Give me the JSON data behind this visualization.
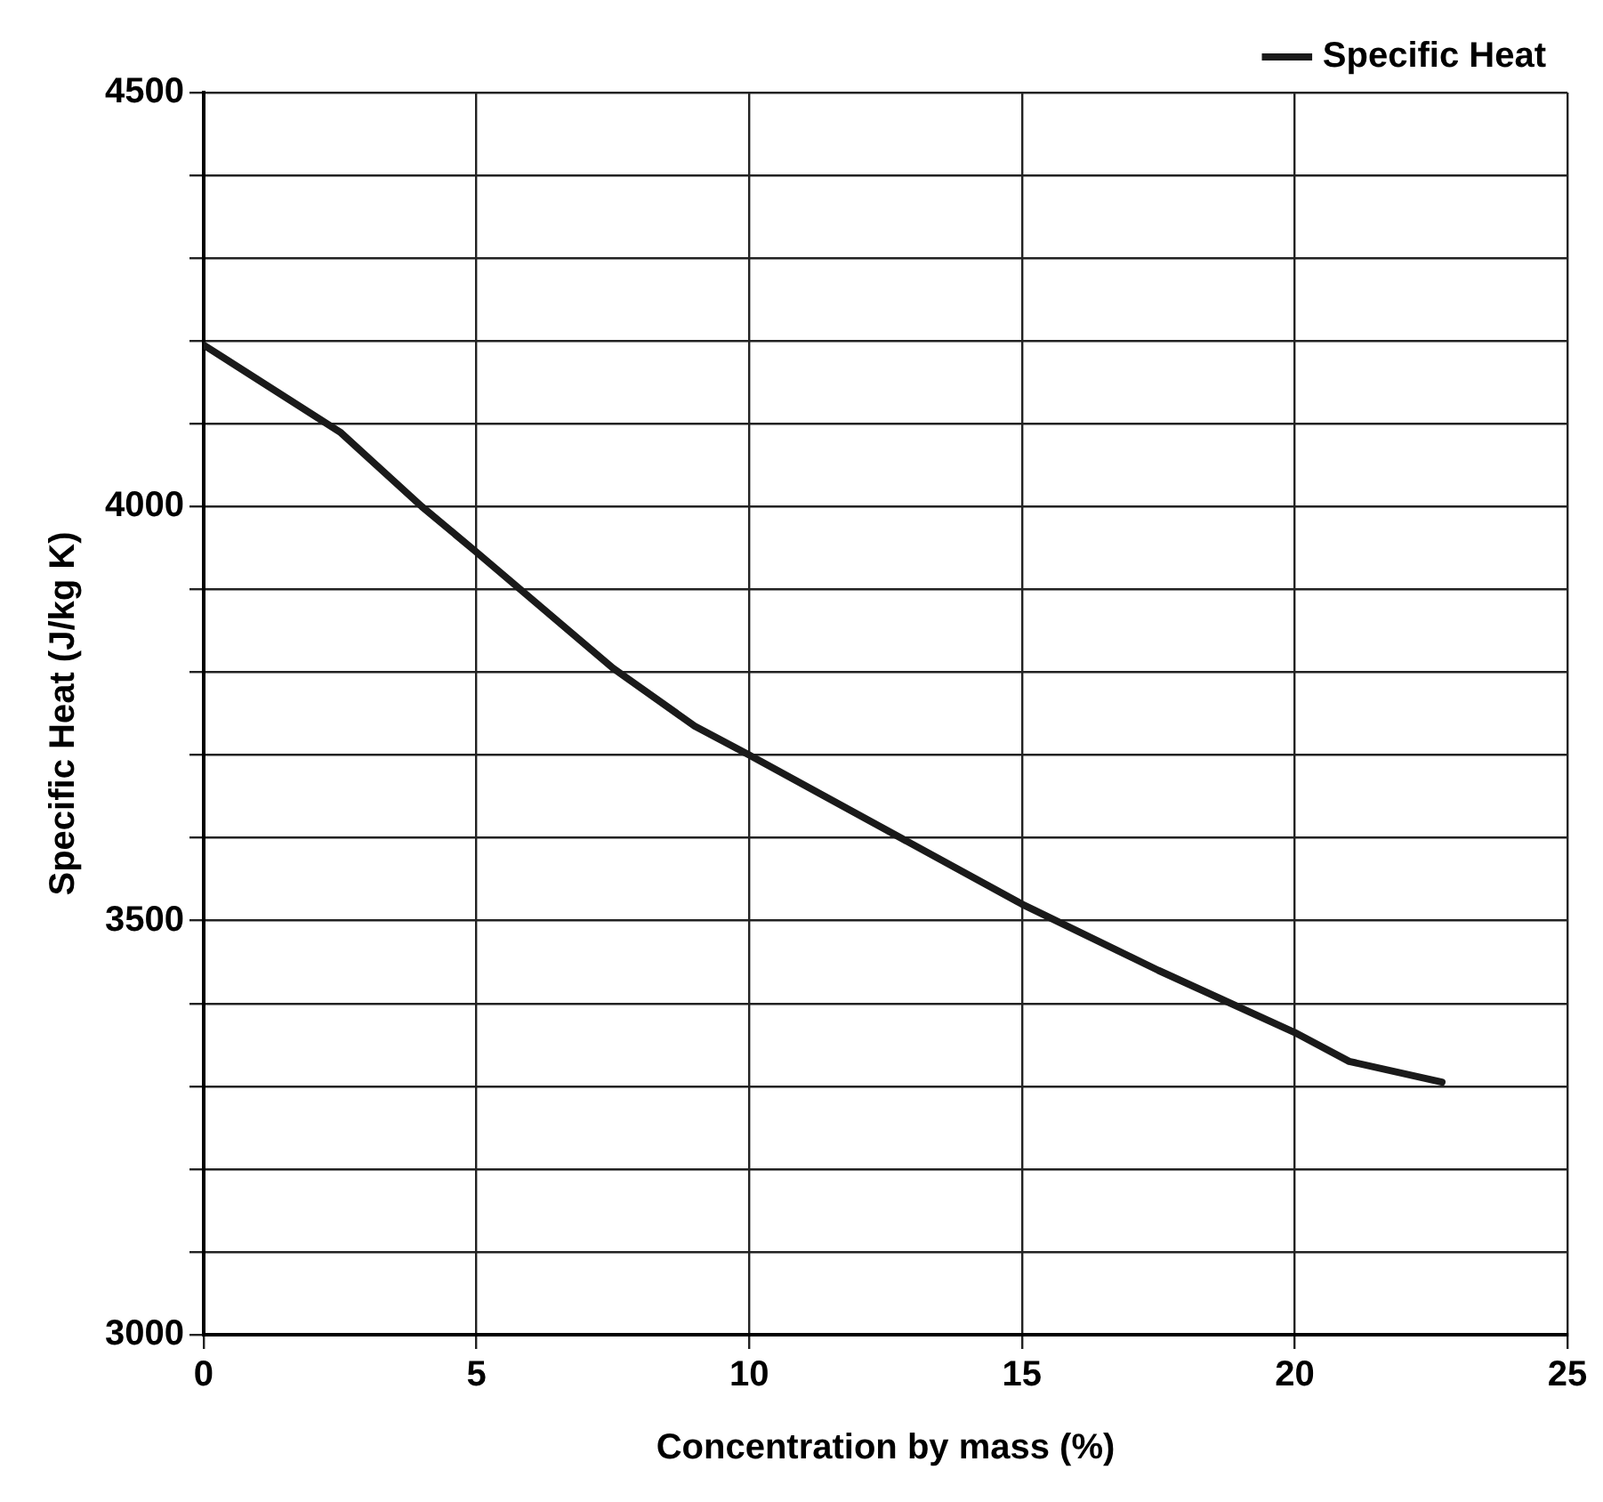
{
  "chart_data": {
    "type": "line",
    "xlabel": "Concentration by mass (%)",
    "ylabel": "Specific Heat (J/kg K)",
    "series": [
      {
        "name": "Specific Heat",
        "color": "#1a1a1a",
        "x": [
          0,
          2.5,
          4,
          5,
          7.5,
          9,
          10,
          12.5,
          15,
          17.5,
          20,
          21,
          22.7
        ],
        "values": [
          4195,
          4090,
          4000,
          3945,
          3805,
          3735,
          3700,
          3610,
          3520,
          3440,
          3365,
          3330,
          3305
        ]
      }
    ],
    "xlim": [
      0,
      25
    ],
    "xticks": [
      0,
      5,
      10,
      15,
      20,
      25
    ],
    "ylim": [
      3000,
      4500
    ],
    "yticks": [
      3000,
      {
        "value": 3100,
        "label": null
      },
      {
        "value": 3200,
        "label": null
      },
      {
        "value": 3300,
        "label": null
      },
      {
        "value": 3400,
        "label": null
      },
      3500,
      {
        "value": 3600,
        "label": null
      },
      {
        "value": 3700,
        "label": null
      },
      {
        "value": 3800,
        "label": null
      },
      {
        "value": 3900,
        "label": null
      },
      4000,
      {
        "value": 4100,
        "label": null
      },
      {
        "value": 4200,
        "label": null
      },
      {
        "value": 4300,
        "label": null
      },
      {
        "value": 4400,
        "label": null
      },
      4500
    ],
    "grid": true,
    "legend": "top right",
    "marker": "none",
    "line_style": "solid"
  }
}
